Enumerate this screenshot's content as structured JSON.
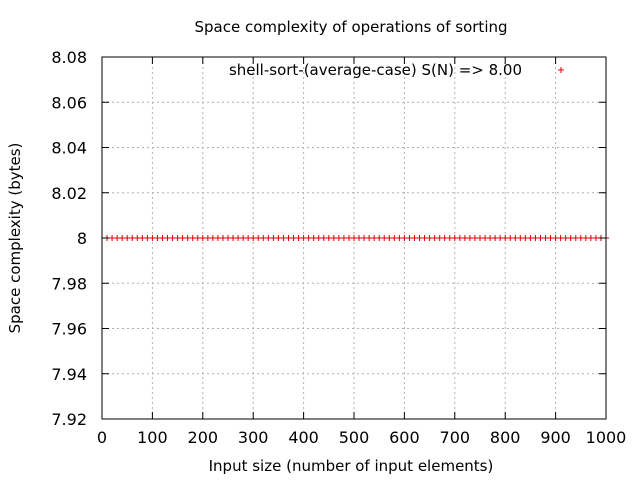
{
  "chart_data": {
    "type": "scatter",
    "title": "Space complexity of operations of sorting",
    "xlabel": "Input size (number of input elements)",
    "ylabel": "Space complexity (bytes)",
    "xlim": [
      0,
      1000
    ],
    "ylim": [
      7.92,
      8.08
    ],
    "xticks": [
      0,
      100,
      200,
      300,
      400,
      500,
      600,
      700,
      800,
      900,
      1000
    ],
    "yticks": [
      7.92,
      7.94,
      7.96,
      7.98,
      8,
      8.02,
      8.04,
      8.06,
      8.08
    ],
    "xtick_labels": [
      "0",
      "100",
      "200",
      "300",
      "400",
      "500",
      "600",
      "700",
      "800",
      "900",
      "1000"
    ],
    "ytick_labels": [
      "7.92",
      "7.94",
      "7.96",
      "7.98",
      "8",
      "8.02",
      "8.04",
      "8.06",
      "8.08"
    ],
    "grid": true,
    "legend_position": "top-right",
    "series": [
      {
        "name": "shell-sort-(average-case) S(N) => 8.00",
        "marker": "plus",
        "color": "#e00000",
        "x": [
          10,
          20,
          30,
          40,
          50,
          60,
          70,
          80,
          90,
          100,
          110,
          120,
          130,
          140,
          150,
          160,
          170,
          180,
          190,
          200,
          210,
          220,
          230,
          240,
          250,
          260,
          270,
          280,
          290,
          300,
          310,
          320,
          330,
          340,
          350,
          360,
          370,
          380,
          390,
          400,
          410,
          420,
          430,
          440,
          450,
          460,
          470,
          480,
          490,
          500,
          510,
          520,
          530,
          540,
          550,
          560,
          570,
          580,
          590,
          600,
          610,
          620,
          630,
          640,
          650,
          660,
          670,
          680,
          690,
          700,
          710,
          720,
          730,
          740,
          750,
          760,
          770,
          780,
          790,
          800,
          810,
          820,
          830,
          840,
          850,
          860,
          870,
          880,
          890,
          900,
          910,
          920,
          930,
          940,
          950,
          960,
          970,
          980,
          990,
          1000
        ],
        "y_constant": 8
      }
    ],
    "fit_line": {
      "y": 8,
      "color": "#00a000"
    }
  }
}
